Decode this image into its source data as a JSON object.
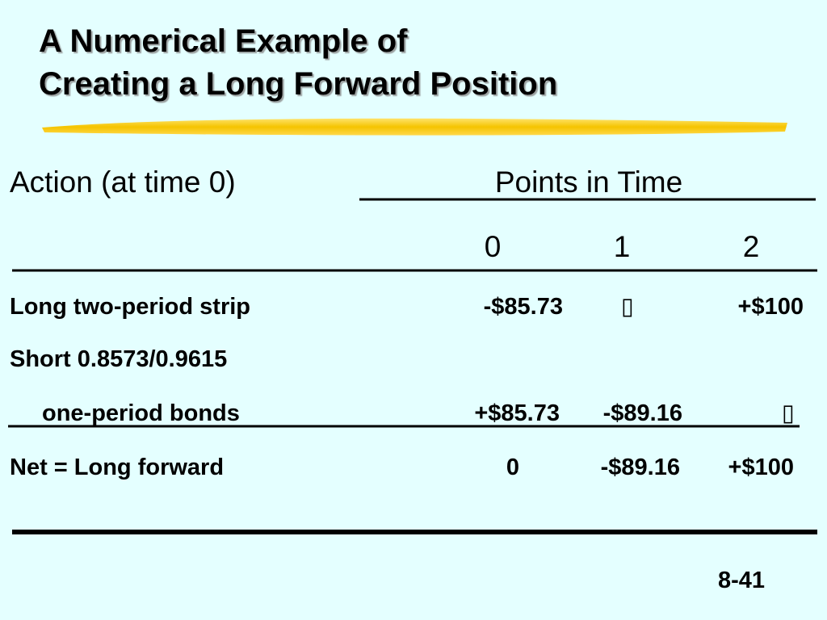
{
  "title": {
    "lines": [
      "A Numerical Example of",
      "Creating a Long Forward Position"
    ]
  },
  "table": {
    "header": {
      "action": "Action (at time 0)",
      "points": "Points in Time"
    },
    "columns": [
      "0",
      "1",
      "2"
    ],
    "rows": [
      [
        "Long two-period strip",
        "-$85.73",
        "▯",
        "+$100"
      ],
      [
        "Short 0.8573/0.9615"
      ],
      [
        "one-period bonds",
        "+$85.73",
        "-$89.16",
        "▯"
      ],
      [
        "Net = Long forward",
        "0",
        "-$89.16",
        "+$100"
      ]
    ]
  },
  "footer": {
    "page": "8-41"
  }
}
